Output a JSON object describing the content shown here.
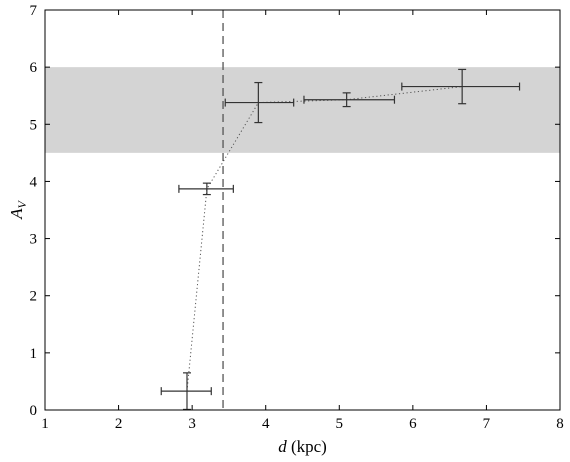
{
  "chart_data": {
    "type": "scatter",
    "title": "",
    "xlabel_var": "d",
    "xlabel_unit": " (kpc)",
    "ylabel_var": "A",
    "ylabel_sub": "V",
    "xlim": [
      1,
      8
    ],
    "ylim": [
      0,
      7
    ],
    "xticks": [
      "1",
      "2",
      "3",
      "4",
      "5",
      "6",
      "7",
      "8"
    ],
    "yticks": [
      "0",
      "1",
      "2",
      "3",
      "4",
      "5",
      "6",
      "7"
    ],
    "grid": false,
    "legend": "none",
    "shaded_band": {
      "y_from": 4.5,
      "y_to": 6.0,
      "color": "#d4d4d4"
    },
    "vertical_line": {
      "x": 3.42,
      "style": "dashed",
      "color": "#555555"
    },
    "connector": {
      "style": "dotted",
      "color": "#555555"
    },
    "points": [
      {
        "x": 2.93,
        "y": 0.33,
        "x_err": [
          0.35,
          0.33
        ],
        "y_err": 0.32
      },
      {
        "x": 3.2,
        "y": 3.87,
        "x_err": [
          0.38,
          0.36
        ],
        "y_err": 0.1
      },
      {
        "x": 3.9,
        "y": 5.38,
        "x_err": [
          0.45,
          0.48
        ],
        "y_err": 0.35
      },
      {
        "x": 5.1,
        "y": 5.43,
        "x_err": [
          0.58,
          0.65
        ],
        "y_err": 0.12
      },
      {
        "x": 6.67,
        "y": 5.66,
        "x_err": [
          0.82,
          0.78
        ],
        "y_err": 0.3
      }
    ]
  }
}
